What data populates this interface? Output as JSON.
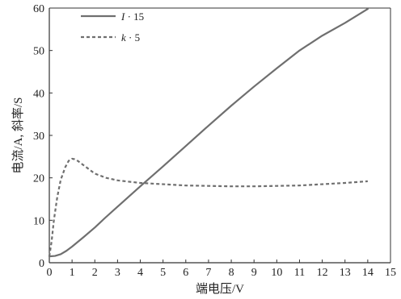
{
  "chart_data": {
    "type": "line",
    "xlabel": "端电压/V",
    "ylabel": "电流/A, 斜率/S",
    "xlim": [
      0,
      15
    ],
    "ylim": [
      0,
      60
    ],
    "x_ticks": [
      0,
      1,
      2,
      3,
      4,
      5,
      6,
      7,
      8,
      9,
      10,
      11,
      12,
      13,
      14,
      15
    ],
    "y_ticks": [
      0,
      10,
      20,
      30,
      40,
      50,
      60
    ],
    "grid": false,
    "legend_position": "top-left",
    "series": [
      {
        "name": "I · 15",
        "name_var": "I",
        "name_rest": " · 15",
        "style": "solid",
        "color": "#6f6f6f",
        "x": [
          0.0,
          0.25,
          0.5,
          0.75,
          1.0,
          1.5,
          2.0,
          2.5,
          3.0,
          3.5,
          4.0,
          5.0,
          6.0,
          7.0,
          8.0,
          9.0,
          10.0,
          11.0,
          12.0,
          13.0,
          14.0
        ],
        "y": [
          1.5,
          1.6,
          2.0,
          2.8,
          3.8,
          6.0,
          8.3,
          10.8,
          13.2,
          15.6,
          18.0,
          22.7,
          27.5,
          32.3,
          37.0,
          41.5,
          45.8,
          50.0,
          53.5,
          56.5,
          59.8
        ]
      },
      {
        "name": "k · 5",
        "name_var": "k",
        "name_rest": " · 5",
        "style": "dashed",
        "color": "#6f6f6f",
        "x": [
          0.0,
          0.1,
          0.2,
          0.35,
          0.5,
          0.7,
          0.85,
          1.0,
          1.1,
          1.25,
          1.5,
          2.0,
          2.5,
          3.0,
          4.0,
          5.0,
          6.0,
          7.0,
          8.0,
          9.0,
          10.0,
          11.0,
          12.0,
          13.0,
          14.0
        ],
        "y": [
          1.5,
          5.0,
          10.0,
          15.5,
          19.5,
          22.5,
          24.0,
          24.5,
          24.4,
          24.0,
          23.0,
          21.0,
          20.0,
          19.4,
          18.8,
          18.5,
          18.2,
          18.1,
          18.0,
          18.0,
          18.1,
          18.2,
          18.5,
          18.8,
          19.2
        ]
      }
    ]
  }
}
